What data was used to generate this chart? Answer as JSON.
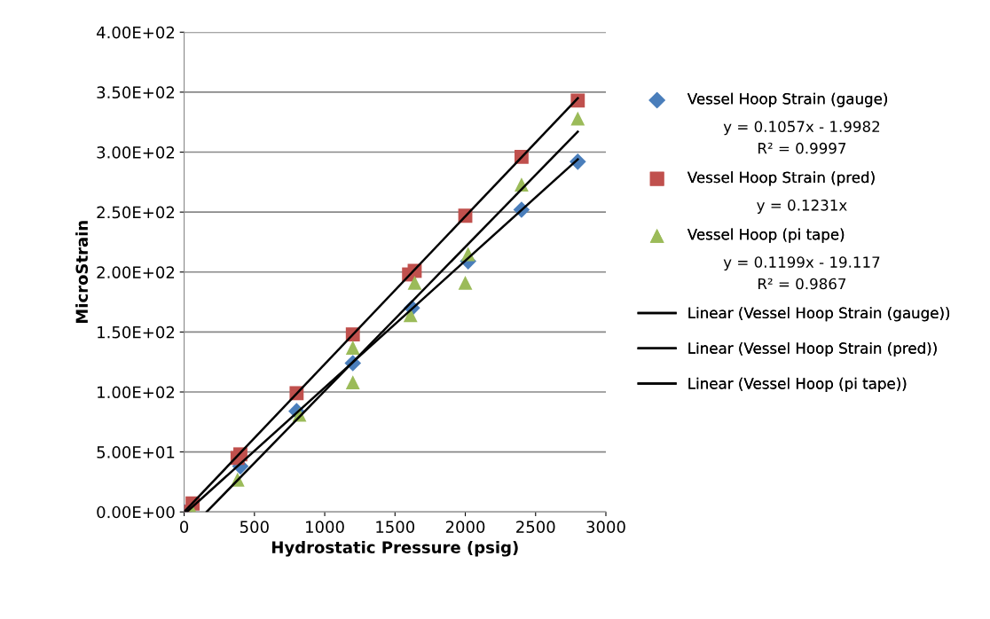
{
  "chart_data": {
    "type": "scatter",
    "xlabel": "Hydrostatic Pressure (psig)",
    "ylabel": "MicroStrain",
    "xlim": [
      0,
      3000
    ],
    "xticks": [
      0,
      500,
      1000,
      1500,
      2000,
      2500,
      3000
    ],
    "ylim": [
      0,
      400
    ],
    "yticks": [
      {
        "value": 0,
        "label": "0.00E+00"
      },
      {
        "value": 50,
        "label": "5.00E+01"
      },
      {
        "value": 100,
        "label": "1.00E+02"
      },
      {
        "value": 150,
        "label": "1.50E+02"
      },
      {
        "value": 200,
        "label": "2.00E+02"
      },
      {
        "value": 250,
        "label": "2.50E+02"
      },
      {
        "value": 300,
        "label": "3.00E+02"
      },
      {
        "value": 350,
        "label": "3.50E+02"
      },
      {
        "value": 400,
        "label": "4.00E+02"
      }
    ],
    "grid": "y",
    "legend": "right",
    "series": [
      {
        "name": "Vessel Hoop Strain (gauge)",
        "color": "#4a7ebb",
        "marker": "diamond",
        "x": [
          0,
          400,
          800,
          1200,
          1620,
          2020,
          2400,
          2800
        ],
        "values": [
          0,
          38,
          84,
          124,
          170,
          209,
          252,
          292
        ]
      },
      {
        "name": "Vessel Hoop Strain (pred)",
        "color": "#c0504d",
        "marker": "square",
        "x": [
          0,
          60,
          380,
          400,
          800,
          1200,
          1600,
          1640,
          2000,
          2400,
          2800
        ],
        "values": [
          0,
          7,
          45,
          48,
          99,
          148,
          198,
          201,
          247,
          296,
          343
        ]
      },
      {
        "name": "Vessel Hoop (pi tape)",
        "color": "#9bbb59",
        "marker": "triangle",
        "x": [
          60,
          380,
          820,
          1200,
          1200,
          1610,
          1640,
          2000,
          2020,
          2400,
          2800
        ],
        "values": [
          0,
          27,
          81,
          137,
          108,
          164,
          191,
          191,
          215,
          273,
          328
        ]
      },
      {
        "name": "Linear (Vessel Hoop Strain (gauge))",
        "type": "line",
        "marker": "none",
        "color": "#000000",
        "x": [
          19,
          2800
        ],
        "values": [
          0,
          294
        ]
      },
      {
        "name": "Linear (Vessel Hoop Strain (pred))",
        "type": "line",
        "marker": "none",
        "color": "#000000",
        "x": [
          0,
          2800
        ],
        "values": [
          0,
          345
        ]
      },
      {
        "name": "Linear (Vessel Hoop (pi tape))",
        "type": "line",
        "marker": "none",
        "color": "#000000",
        "x": [
          160,
          2800
        ],
        "values": [
          0,
          317
        ]
      }
    ],
    "annotations": [
      "y = 0.1057x - 1.9982",
      "R² = 0.9997",
      "y = 0.1231x",
      "y = 0.1199x - 19.117",
      "R² = 0.9867"
    ]
  }
}
